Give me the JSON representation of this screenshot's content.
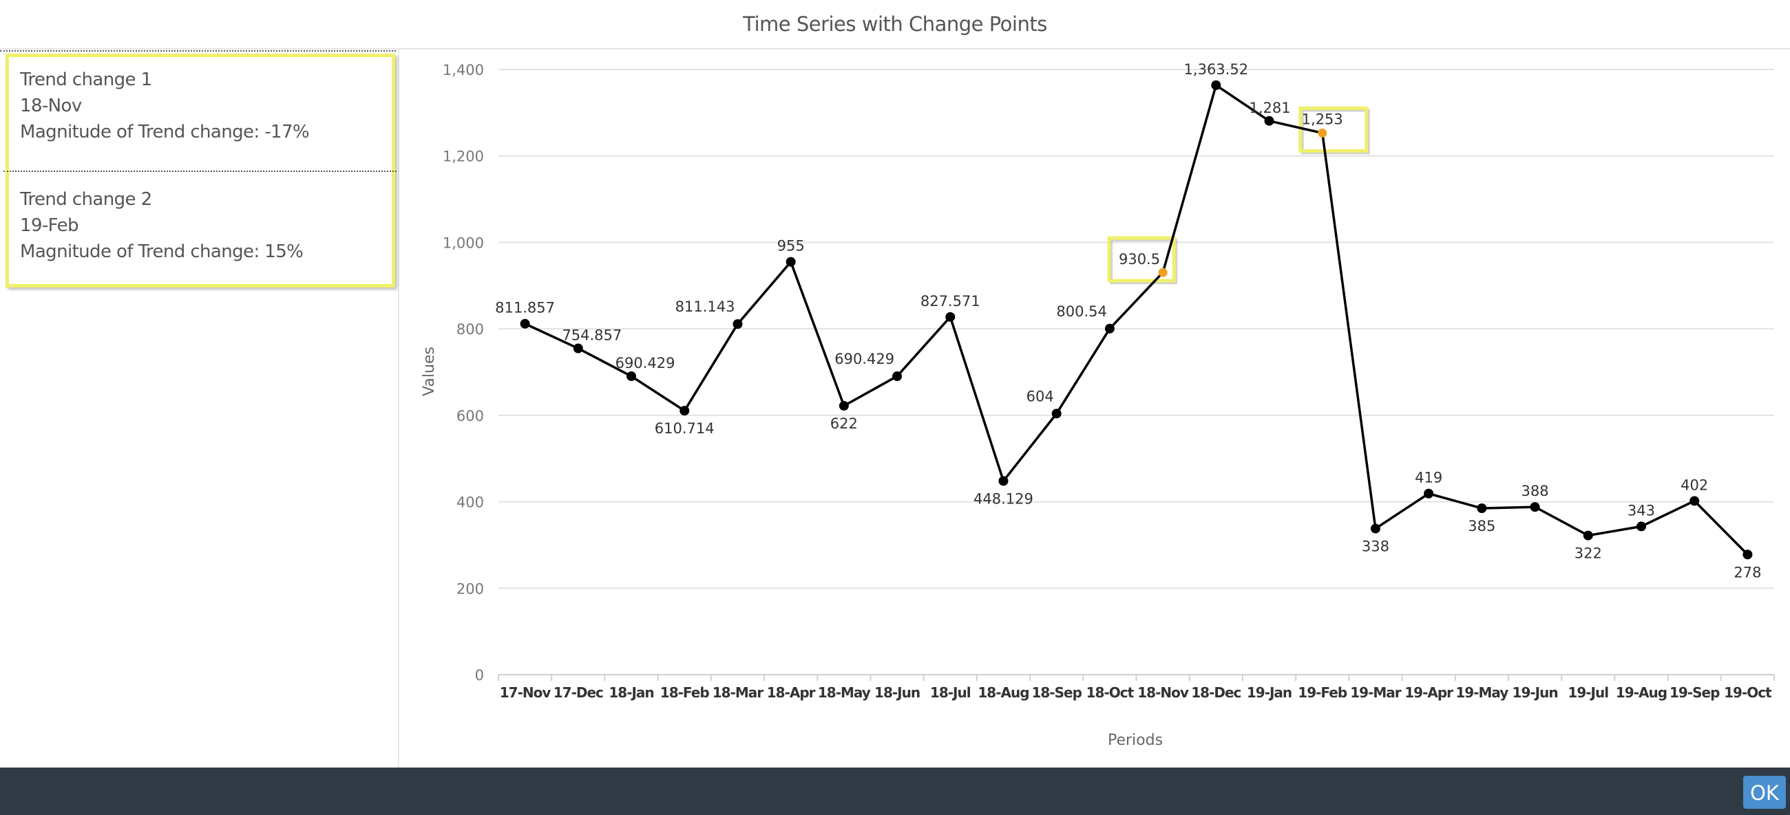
{
  "header": {
    "title": "Time Series with Change Points"
  },
  "side_panel": {
    "trend_changes": [
      {
        "label": "Trend change 1",
        "period": "18-Nov",
        "magnitude": "Magnitude of Trend change: -17%"
      },
      {
        "label": "Trend change 2",
        "period": "19-Feb",
        "magnitude": "Magnitude of Trend change: 15%"
      }
    ]
  },
  "footer": {
    "ok_label": "OK"
  },
  "colors": {
    "line": "#000000",
    "change_point": "#f0a020",
    "highlight_box": "#f0f06a",
    "footer_bg": "#2f3a45",
    "ok_button": "#4a8fd0"
  },
  "chart_data": {
    "type": "line",
    "title": "Time Series with Change Points",
    "xlabel": "Periods",
    "ylabel": "Values",
    "ylim": [
      0,
      1400
    ],
    "yticks": [
      "0",
      "200",
      "400",
      "600",
      "800",
      "1,000",
      "1,200",
      "1,400"
    ],
    "grid": true,
    "legend": "none",
    "categories": [
      "17-Nov",
      "17-Dec",
      "18-Jan",
      "18-Feb",
      "18-Mar",
      "18-Apr",
      "18-May",
      "18-Jun",
      "18-Jul",
      "18-Aug",
      "18-Sep",
      "18-Oct",
      "18-Nov",
      "18-Dec",
      "19-Jan",
      "19-Feb",
      "19-Mar",
      "19-Apr",
      "19-May",
      "19-Jun",
      "19-Jul",
      "19-Aug",
      "19-Sep",
      "19-Oct"
    ],
    "series": [
      {
        "name": "Values",
        "values": [
          811.857,
          754.857,
          690.429,
          610.714,
          811.143,
          955,
          622,
          690.429,
          827.571,
          448.129,
          604,
          800.54,
          930.5,
          1363.52,
          1281,
          1253,
          338,
          419,
          385,
          388,
          322,
          343,
          402,
          278
        ],
        "labels": [
          "811.857",
          "754.857",
          "690.429",
          "610.714",
          "811.143",
          "955",
          "622",
          "690.429",
          "827.571",
          "448.129",
          "604",
          "800.54",
          "930.5",
          "1,363.52",
          "1,281",
          "1,253",
          "338",
          "419",
          "385",
          "388",
          "322",
          "343",
          "402",
          "278"
        ]
      }
    ],
    "change_points": [
      {
        "period": "18-Nov",
        "value": 930.5,
        "label": "930.5"
      },
      {
        "period": "19-Feb",
        "value": 1253,
        "label": "1,253"
      }
    ]
  }
}
